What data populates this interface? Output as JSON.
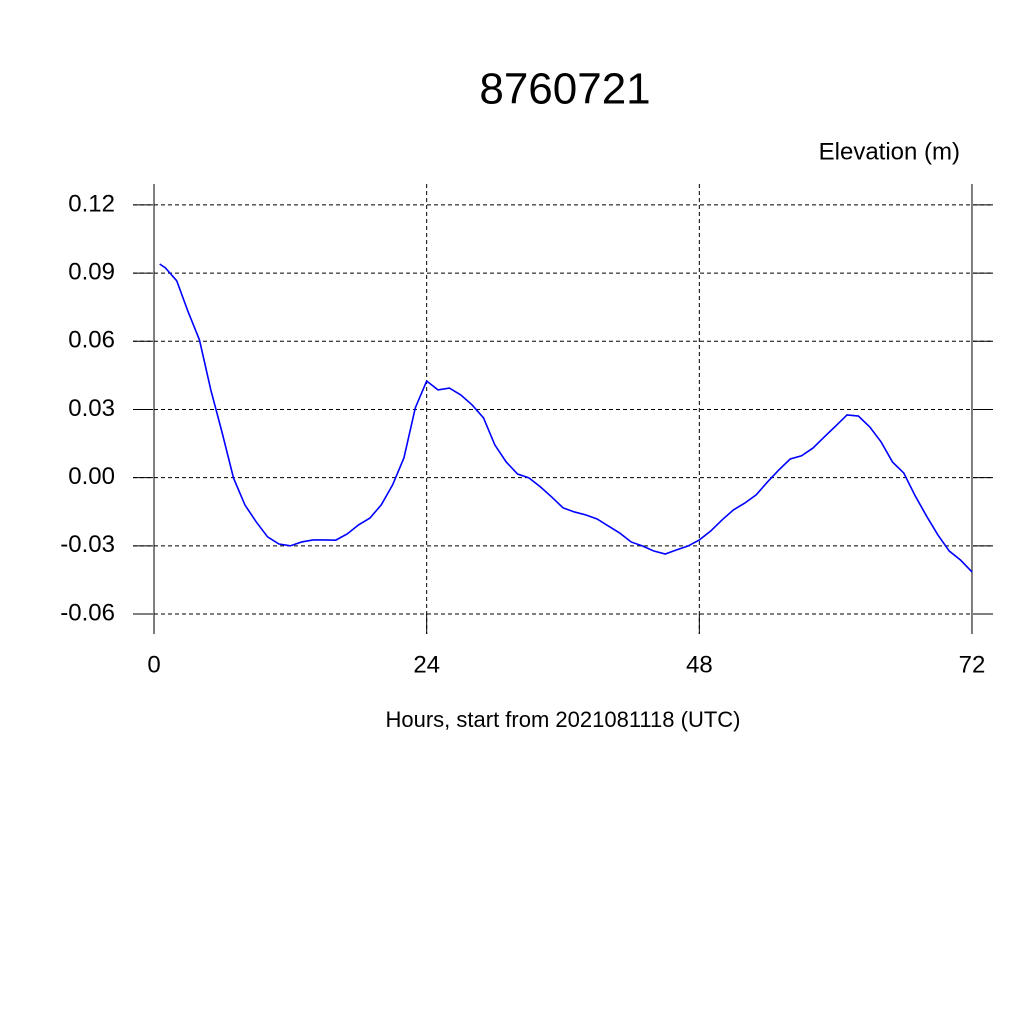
{
  "chart_data": {
    "type": "line",
    "title": "8760721",
    "subtitle": "Elevation (m)",
    "x_label": "Hours, start from 2021081118 (UTC)",
    "x": [
      0.5,
      1,
      2,
      3,
      4,
      5,
      6,
      7,
      8,
      9,
      10,
      11,
      12,
      13,
      14,
      15,
      16,
      17,
      18,
      19,
      20,
      21,
      22,
      23,
      24,
      25,
      26,
      27,
      28,
      29,
      30,
      31,
      32,
      33,
      34,
      35,
      36,
      37,
      38,
      39,
      40,
      41,
      42,
      43,
      44,
      45,
      46,
      47,
      48,
      49,
      50,
      51,
      52,
      53,
      54,
      55,
      56,
      57,
      58,
      59,
      60,
      61,
      62,
      63,
      64,
      65,
      66,
      67,
      68,
      69,
      70,
      71,
      72
    ],
    "series": [
      {
        "name": "Elevation",
        "color": "#0000ff",
        "values": [
          0.094,
          0.0923,
          0.0866,
          0.073,
          0.0606,
          0.0386,
          0.0197,
          -0.0002,
          -0.012,
          -0.0195,
          -0.0261,
          -0.0292,
          -0.03,
          -0.0283,
          -0.0274,
          -0.0274,
          -0.0275,
          -0.0248,
          -0.0208,
          -0.0178,
          -0.012,
          -0.0032,
          0.0087,
          0.0307,
          0.0425,
          0.0386,
          0.0394,
          0.0364,
          0.032,
          0.0263,
          0.0144,
          0.0069,
          0.0016,
          -0.0001,
          -0.004,
          -0.0085,
          -0.0133,
          -0.0151,
          -0.0164,
          -0.0182,
          -0.0213,
          -0.0244,
          -0.0283,
          -0.0301,
          -0.0323,
          -0.0336,
          -0.0318,
          -0.0301,
          -0.0274,
          -0.0235,
          -0.0186,
          -0.0142,
          -0.0112,
          -0.0076,
          -0.0019,
          0.0034,
          0.0082,
          0.0096,
          0.013,
          0.0179,
          0.0227,
          0.0276,
          0.0271,
          0.0223,
          0.0157,
          0.0069,
          0.002,
          -0.008,
          -0.0169,
          -0.0252,
          -0.0323,
          -0.0363,
          -0.0415
        ]
      }
    ],
    "xlim": [
      -1.85,
      73.85
    ],
    "xticks": [
      0,
      24,
      48,
      72
    ],
    "ylim": [
      -0.0688,
      0.1292
    ],
    "yticks": [
      0.12,
      0.09,
      0.06,
      0.03,
      {
        "value": 0,
        "label": "0.00"
      },
      -0.03,
      -0.06
    ],
    "grid": true
  }
}
